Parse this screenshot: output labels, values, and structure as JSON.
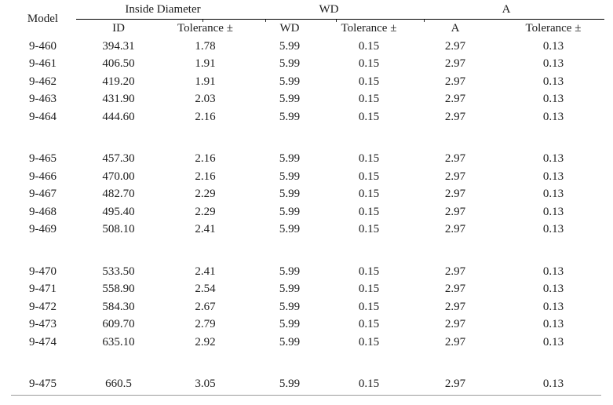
{
  "colors": {
    "text": "#1b1b1b",
    "header_rule": "#000000",
    "bottom_rule": "#9a9a9a",
    "background": "#ffffff"
  },
  "table": {
    "corner_header": "Model",
    "groups": [
      {
        "label": "Inside Diameter"
      },
      {
        "label": "WD"
      },
      {
        "label": "A"
      }
    ],
    "sub_headers": [
      "ID",
      "Tolerance ±",
      "WD",
      "Tolerance ±",
      "A",
      "Tolerance ±"
    ],
    "rows": [
      [
        "9-460",
        "394.31",
        "1.78",
        "5.99",
        "0.15",
        "2.97",
        "0.13"
      ],
      [
        "9-461",
        "406.50",
        "1.91",
        "5.99",
        "0.15",
        "2.97",
        "0.13"
      ],
      [
        "9-462",
        "419.20",
        "1.91",
        "5.99",
        "0.15",
        "2.97",
        "0.13"
      ],
      [
        "9-463",
        "431.90",
        "2.03",
        "5.99",
        "0.15",
        "2.97",
        "0.13"
      ],
      [
        "9-464",
        "444.60",
        "2.16",
        "5.99",
        "0.15",
        "2.97",
        "0.13"
      ],
      [
        "9-465",
        "457.30",
        "2.16",
        "5.99",
        "0.15",
        "2.97",
        "0.13"
      ],
      [
        "9-466",
        "470.00",
        "2.16",
        "5.99",
        "0.15",
        "2.97",
        "0.13"
      ],
      [
        "9-467",
        "482.70",
        "2.29",
        "5.99",
        "0.15",
        "2.97",
        "0.13"
      ],
      [
        "9-468",
        "495.40",
        "2.29",
        "5.99",
        "0.15",
        "2.97",
        "0.13"
      ],
      [
        "9-469",
        "508.10",
        "2.41",
        "5.99",
        "0.15",
        "2.97",
        "0.13"
      ],
      [
        "9-470",
        "533.50",
        "2.41",
        "5.99",
        "0.15",
        "2.97",
        "0.13"
      ],
      [
        "9-471",
        "558.90",
        "2.54",
        "5.99",
        "0.15",
        "2.97",
        "0.13"
      ],
      [
        "9-472",
        "584.30",
        "2.67",
        "5.99",
        "0.15",
        "2.97",
        "0.13"
      ],
      [
        "9-473",
        "609.70",
        "2.79",
        "5.99",
        "0.15",
        "2.97",
        "0.13"
      ],
      [
        "9-474",
        "635.10",
        "2.92",
        "5.99",
        "0.15",
        "2.97",
        "0.13"
      ],
      [
        "9-475",
        "660.5",
        "3.05",
        "5.99",
        "0.15",
        "2.97",
        "0.13"
      ]
    ],
    "group_breaks_after": [
      4,
      9,
      14
    ]
  }
}
